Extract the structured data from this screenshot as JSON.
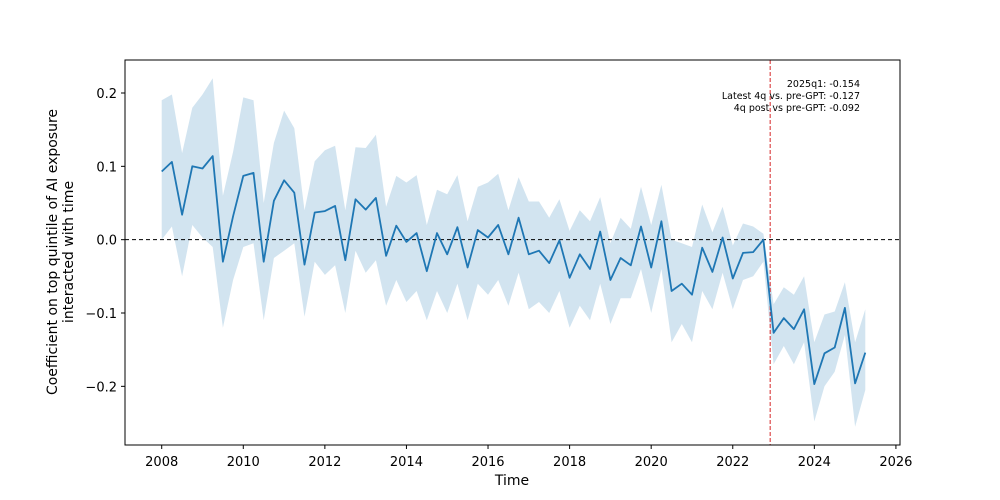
{
  "chart_data": {
    "type": "line",
    "title": "",
    "xlabel": "Time",
    "ylabel_lines": [
      "Coefficient on top quintile of AI exposure",
      "interacted with time"
    ],
    "xlim": [
      2007.1,
      2026.1
    ],
    "ylim": [
      -0.28,
      0.245
    ],
    "xticks": [
      2008,
      2010,
      2012,
      2014,
      2016,
      2018,
      2020,
      2022,
      2024,
      2026
    ],
    "yticks": [
      -0.2,
      -0.1,
      0.0,
      0.1,
      0.2
    ],
    "ytick_labels": [
      "−0.2",
      "−0.1",
      "0.0",
      "0.1",
      "0.2"
    ],
    "grid": false,
    "zero_line": 0.0,
    "vline_x": 2022.917,
    "line_color": "#1f77b4",
    "band_color": "#1f77b4",
    "band_opacity": 0.2,
    "vline_color": "#d62728",
    "annotations": [
      "2025q1: -0.154",
      "Latest 4q vs. pre-GPT: -0.127",
      "4q post vs pre-GPT: -0.092"
    ],
    "series": [
      {
        "x": [
          2008.0,
          2008.25,
          2008.5,
          2008.75,
          2009.0,
          2009.25,
          2009.5,
          2009.75,
          2010.0,
          2010.25,
          2010.5,
          2010.75,
          2011.0,
          2011.25,
          2011.5,
          2011.75,
          2012.0,
          2012.25,
          2012.5,
          2012.75,
          2013.0,
          2013.25,
          2013.5,
          2013.75,
          2014.0,
          2014.25,
          2014.5,
          2014.75,
          2015.0,
          2015.25,
          2015.5,
          2015.75,
          2016.0,
          2016.25,
          2016.5,
          2016.75,
          2017.0,
          2017.25,
          2017.5,
          2017.75,
          2018.0,
          2018.25,
          2018.5,
          2018.75,
          2019.0,
          2019.25,
          2019.5,
          2019.75,
          2020.0,
          2020.25,
          2020.5,
          2020.75,
          2021.0,
          2021.25,
          2021.5,
          2021.75,
          2022.0,
          2022.25,
          2022.5,
          2022.75,
          2023.0,
          2023.25,
          2023.5,
          2023.75,
          2024.0,
          2024.25,
          2024.5,
          2024.75,
          2025.0,
          2025.25
        ],
        "y": [
          0.093,
          0.106,
          0.034,
          0.1,
          0.097,
          0.114,
          -0.03,
          0.032,
          0.087,
          0.091,
          -0.03,
          0.053,
          0.081,
          0.064,
          -0.034,
          0.037,
          0.039,
          0.046,
          -0.028,
          0.055,
          0.041,
          0.057,
          -0.022,
          0.019,
          -0.003,
          0.009,
          -0.043,
          0.009,
          -0.02,
          0.017,
          -0.038,
          0.013,
          0.003,
          0.02,
          -0.02,
          0.03,
          -0.02,
          -0.015,
          -0.032,
          -0.001,
          -0.052,
          -0.02,
          -0.04,
          0.011,
          -0.055,
          -0.025,
          -0.035,
          0.018,
          -0.038,
          0.025,
          -0.07,
          -0.06,
          -0.075,
          -0.011,
          -0.044,
          0.003,
          -0.053,
          -0.018,
          -0.017,
          0.0,
          -0.127,
          -0.107,
          -0.122,
          -0.095,
          -0.197,
          -0.155,
          -0.147,
          -0.093,
          -0.196,
          -0.154
        ],
        "lower": [
          0.0,
          0.018,
          -0.05,
          0.02,
          0.003,
          -0.01,
          -0.12,
          -0.055,
          -0.01,
          -0.005,
          -0.11,
          -0.025,
          -0.015,
          -0.005,
          -0.105,
          -0.03,
          -0.048,
          -0.035,
          -0.1,
          -0.015,
          -0.045,
          -0.028,
          -0.09,
          -0.055,
          -0.085,
          -0.07,
          -0.11,
          -0.07,
          -0.1,
          -0.06,
          -0.11,
          -0.06,
          -0.075,
          -0.055,
          -0.09,
          -0.045,
          -0.095,
          -0.085,
          -0.1,
          -0.07,
          -0.12,
          -0.09,
          -0.11,
          -0.06,
          -0.115,
          -0.08,
          -0.08,
          -0.04,
          -0.1,
          -0.04,
          -0.14,
          -0.115,
          -0.14,
          -0.07,
          -0.095,
          -0.045,
          -0.095,
          -0.055,
          -0.05,
          -0.03,
          -0.17,
          -0.145,
          -0.17,
          -0.14,
          -0.248,
          -0.2,
          -0.18,
          -0.13,
          -0.255,
          -0.205
        ],
        "upper": [
          0.19,
          0.198,
          0.118,
          0.18,
          0.198,
          0.22,
          0.06,
          0.12,
          0.194,
          0.19,
          0.05,
          0.132,
          0.176,
          0.152,
          0.04,
          0.107,
          0.122,
          0.128,
          0.04,
          0.126,
          0.125,
          0.143,
          0.045,
          0.087,
          0.078,
          0.088,
          0.02,
          0.068,
          0.062,
          0.088,
          0.025,
          0.072,
          0.078,
          0.09,
          0.04,
          0.085,
          0.052,
          0.052,
          0.03,
          0.055,
          0.012,
          0.04,
          0.025,
          0.058,
          -0.005,
          0.03,
          0.015,
          0.072,
          0.02,
          0.075,
          0.0,
          -0.005,
          -0.01,
          0.048,
          0.01,
          0.045,
          -0.008,
          0.022,
          0.018,
          0.008,
          -0.088,
          -0.065,
          -0.075,
          -0.05,
          -0.14,
          -0.102,
          -0.098,
          -0.058,
          -0.14,
          -0.095
        ]
      }
    ]
  }
}
